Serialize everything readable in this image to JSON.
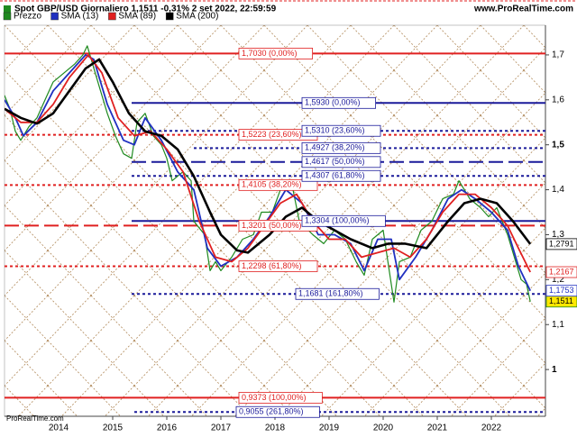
{
  "chart_data": {
    "type": "line",
    "title": "Spot GBP/USD Giornaliero 1,1511 -0,31% 2 set 2022, 22:59:59",
    "source": "www.ProRealTime.com",
    "watermark": "ProRealTime.com",
    "xlim": [
      2013.0,
      2023.0
    ],
    "xticks": [
      2014,
      2015,
      2016,
      2017,
      2018,
      2019,
      2020,
      2021,
      2022
    ],
    "ylim": [
      0.896,
      1.766
    ],
    "yticks": [
      {
        "value": 1.7,
        "label": "1,7"
      },
      {
        "value": 1.6,
        "label": "1,6"
      },
      {
        "value": 1.5,
        "label": "1,5"
      },
      {
        "value": 1.4,
        "label": "1,4"
      },
      {
        "value": 1.3,
        "label": "1,3"
      },
      {
        "value": 1.2,
        "label": "1,2"
      },
      {
        "value": 1.1,
        "label": "1,1"
      },
      1
    ],
    "series": [
      {
        "name": "Prezzo",
        "color": "#1f8a1f",
        "last_label": "1,1511",
        "x": [
          2013.0,
          2013.1,
          2013.2,
          2013.3,
          2013.45,
          2013.6,
          2013.75,
          2013.9,
          2014.1,
          2014.3,
          2014.45,
          2014.53,
          2014.75,
          2014.9,
          2015.05,
          2015.2,
          2015.35,
          2015.45,
          2015.6,
          2015.75,
          2015.9,
          2016.0,
          2016.1,
          2016.3,
          2016.45,
          2016.5,
          2016.7,
          2016.8,
          2016.9,
          2017.0,
          2017.2,
          2017.4,
          2017.6,
          2017.75,
          2017.95,
          2018.1,
          2018.3,
          2018.45,
          2018.7,
          2018.9,
          2019.1,
          2019.3,
          2019.5,
          2019.65,
          2019.8,
          2020.0,
          2020.2,
          2020.3,
          2020.5,
          2020.7,
          2020.9,
          2021.1,
          2021.3,
          2021.4,
          2021.6,
          2021.8,
          2021.95,
          2022.1,
          2022.3,
          2022.45,
          2022.55,
          2022.65,
          2022.72
        ],
        "values": [
          1.61,
          1.58,
          1.53,
          1.51,
          1.54,
          1.56,
          1.6,
          1.64,
          1.66,
          1.68,
          1.7,
          1.72,
          1.63,
          1.57,
          1.52,
          1.48,
          1.47,
          1.55,
          1.57,
          1.52,
          1.5,
          1.47,
          1.42,
          1.44,
          1.42,
          1.33,
          1.3,
          1.22,
          1.24,
          1.22,
          1.25,
          1.29,
          1.3,
          1.35,
          1.35,
          1.4,
          1.42,
          1.33,
          1.3,
          1.28,
          1.31,
          1.29,
          1.24,
          1.21,
          1.29,
          1.31,
          1.15,
          1.24,
          1.25,
          1.31,
          1.33,
          1.38,
          1.39,
          1.42,
          1.38,
          1.36,
          1.34,
          1.36,
          1.3,
          1.24,
          1.2,
          1.19,
          1.1511
        ]
      },
      {
        "name": "SMA (13)",
        "color": "#2030c0",
        "last_label": "1,1753",
        "x": [
          2013.0,
          2013.2,
          2013.35,
          2013.6,
          2013.9,
          2014.2,
          2014.5,
          2014.65,
          2014.9,
          2015.2,
          2015.4,
          2015.6,
          2015.9,
          2016.2,
          2016.5,
          2016.75,
          2017.0,
          2017.3,
          2017.6,
          2017.9,
          2018.2,
          2018.5,
          2018.8,
          2019.1,
          2019.4,
          2019.65,
          2019.9,
          2020.15,
          2020.3,
          2020.6,
          2020.9,
          2021.2,
          2021.45,
          2021.7,
          2022.0,
          2022.3,
          2022.5,
          2022.72
        ],
        "values": [
          1.6,
          1.56,
          1.52,
          1.55,
          1.62,
          1.66,
          1.7,
          1.69,
          1.59,
          1.51,
          1.5,
          1.56,
          1.51,
          1.44,
          1.4,
          1.27,
          1.23,
          1.25,
          1.29,
          1.34,
          1.4,
          1.37,
          1.3,
          1.3,
          1.28,
          1.22,
          1.29,
          1.29,
          1.2,
          1.25,
          1.31,
          1.38,
          1.4,
          1.38,
          1.35,
          1.31,
          1.23,
          1.1753
        ]
      },
      {
        "name": "SMA (89)",
        "color": "#e02020",
        "last_label": "1,2167",
        "x": [
          2013.0,
          2013.3,
          2013.6,
          2013.9,
          2014.2,
          2014.55,
          2014.8,
          2015.1,
          2015.4,
          2015.7,
          2016.0,
          2016.3,
          2016.6,
          2016.9,
          2017.2,
          2017.5,
          2017.8,
          2018.1,
          2018.4,
          2018.7,
          2019.0,
          2019.3,
          2019.6,
          2019.9,
          2020.2,
          2020.5,
          2020.8,
          2021.1,
          2021.4,
          2021.7,
          2022.0,
          2022.3,
          2022.5,
          2022.72
        ],
        "values": [
          1.58,
          1.55,
          1.55,
          1.59,
          1.65,
          1.7,
          1.66,
          1.56,
          1.52,
          1.53,
          1.49,
          1.44,
          1.33,
          1.25,
          1.24,
          1.27,
          1.32,
          1.37,
          1.39,
          1.33,
          1.29,
          1.29,
          1.25,
          1.26,
          1.27,
          1.25,
          1.29,
          1.35,
          1.39,
          1.39,
          1.36,
          1.32,
          1.27,
          1.2167
        ]
      },
      {
        "name": "SMA (200)",
        "color": "#000000",
        "last_label": "1,2791",
        "x": [
          2013.0,
          2013.3,
          2013.6,
          2013.9,
          2014.2,
          2014.5,
          2014.75,
          2015.0,
          2015.3,
          2015.6,
          2015.9,
          2016.2,
          2016.5,
          2016.8,
          2017.0,
          2017.3,
          2017.5,
          2017.9,
          2018.2,
          2018.5,
          2018.8,
          2019.1,
          2019.4,
          2019.8,
          2020.1,
          2020.4,
          2020.8,
          2021.2,
          2021.5,
          2021.8,
          2022.1,
          2022.4,
          2022.72
        ],
        "values": [
          1.58,
          1.56,
          1.547,
          1.57,
          1.62,
          1.67,
          1.69,
          1.64,
          1.57,
          1.53,
          1.52,
          1.49,
          1.43,
          1.35,
          1.3,
          1.265,
          1.26,
          1.3,
          1.34,
          1.36,
          1.33,
          1.31,
          1.29,
          1.27,
          1.28,
          1.28,
          1.27,
          1.33,
          1.37,
          1.38,
          1.37,
          1.33,
          1.2791
        ]
      }
    ],
    "levels": [
      {
        "value": 1.703,
        "label": "1,7030 (0,00%)",
        "color": "#e02020",
        "style": "solid",
        "start": 2013.0
      },
      {
        "value": 1.5223,
        "label": "1,5223 (23,60%)",
        "color": "#e02020",
        "style": "dotted",
        "start": 2013.0
      },
      {
        "value": 1.4105,
        "label": "1,4105 (38,20%)",
        "color": "#e02020",
        "style": "dotted",
        "start": 2013.0
      },
      {
        "value": 1.3201,
        "label": "1,3201 (50,00%)",
        "color": "#e02020",
        "style": "dashed",
        "start": 2013.0
      },
      {
        "value": 1.2298,
        "label": "1,2298 (61,80%)",
        "color": "#e02020",
        "style": "dotted",
        "start": 2013.0
      },
      {
        "value": 0.9373,
        "label": "0,9373 (100,00%)",
        "color": "#e02020",
        "style": "solid",
        "start": 2013.0
      },
      {
        "value": 1.593,
        "label": "1,5930 (0,00%)",
        "color": "#1a1a9a",
        "style": "solid",
        "start": 2015.35
      },
      {
        "value": 1.531,
        "label": "1,5310 (23,60%)",
        "color": "#1a1a9a",
        "style": "dotted",
        "start": 2015.35
      },
      {
        "value": 1.4927,
        "label": "1,4927 (38,20%)",
        "color": "#1a1a9a",
        "style": "dotted",
        "start": 2016.5
      },
      {
        "value": 1.4617,
        "label": "1,4617 (50,00%)",
        "color": "#1a1a9a",
        "style": "dashed",
        "start": 2015.35
      },
      {
        "value": 1.4307,
        "label": "1,4307 (61,80%)",
        "color": "#1a1a9a",
        "style": "dotted",
        "start": 2015.35
      },
      {
        "value": 1.3304,
        "label": "1,3304 (100,00%)",
        "color": "#1a1a9a",
        "style": "solid",
        "start": 2015.35
      },
      {
        "value": 1.1681,
        "label": "1,1681 (161,80%)",
        "color": "#1a1a9a",
        "style": "dotted",
        "start": 2015.35
      },
      {
        "value": 0.9055,
        "label": "0,9055 (261,80%)",
        "color": "#1a1a9a",
        "style": "dotted",
        "start": 2015.4
      }
    ]
  }
}
